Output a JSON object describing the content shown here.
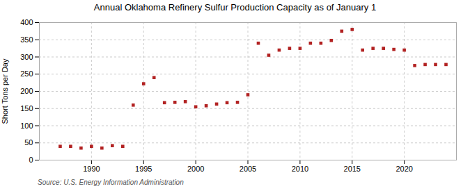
{
  "chart_data": {
    "type": "scatter",
    "title": "Annual Oklahoma Refinery Sulfur Production Capacity as of January 1",
    "ylabel": "Short Tons per Day",
    "source": "Source: U.S. Energy Information Administration",
    "x": [
      1987,
      1988,
      1989,
      1990,
      1991,
      1992,
      1993,
      1994,
      1995,
      1996,
      1997,
      1998,
      1999,
      2000,
      2001,
      2002,
      2003,
      2004,
      2005,
      2006,
      2007,
      2008,
      2009,
      2010,
      2011,
      2012,
      2013,
      2014,
      2015,
      2016,
      2017,
      2018,
      2019,
      2020,
      2021,
      2022,
      2023,
      2024
    ],
    "values": [
      40,
      40,
      35,
      40,
      35,
      42,
      40,
      160,
      222,
      240,
      167,
      168,
      170,
      155,
      158,
      163,
      167,
      168,
      190,
      340,
      305,
      320,
      325,
      325,
      340,
      340,
      348,
      375,
      380,
      320,
      325,
      325,
      322,
      320,
      275,
      278,
      278,
      278
    ],
    "color": "#b22222",
    "marker": "square",
    "xlim": [
      1985,
      2025
    ],
    "xticks": [
      1990,
      1995,
      2000,
      2005,
      2010,
      2015,
      2020
    ],
    "ylim": [
      0,
      400
    ],
    "yticks": [
      0,
      50,
      100,
      150,
      200,
      250,
      300,
      350,
      400
    ],
    "grid": true
  }
}
